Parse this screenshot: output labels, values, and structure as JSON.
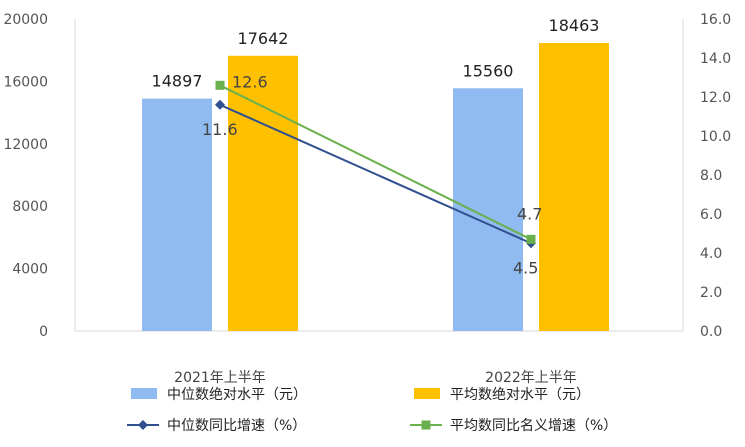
{
  "chart_data": {
    "type": "bar",
    "categories": [
      "2021年上半年",
      "2022年上半年"
    ],
    "y_left": {
      "ticks": [
        "0",
        "4000",
        "8000",
        "12000",
        "16000",
        "20000"
      ],
      "ylim": [
        0,
        20000
      ]
    },
    "y_right": {
      "ticks": [
        "0.0",
        "2.0",
        "4.0",
        "6.0",
        "8.0",
        "10.0",
        "12.0",
        "14.0",
        "16.0"
      ],
      "ylim": [
        0,
        16
      ]
    },
    "bar_series": [
      {
        "name": "中位数绝对水平（元）",
        "color": "#8FBBF0",
        "values": [
          14897,
          15560
        ],
        "labels": [
          "14897",
          "15560"
        ]
      },
      {
        "name": "平均数绝对水平（元）",
        "color": "#FFC000",
        "values": [
          17642,
          18463
        ],
        "labels": [
          "17642",
          "18463"
        ]
      }
    ],
    "line_series": [
      {
        "name": "中位数同比增速（%）",
        "color": "#2F4F8F",
        "marker": "diamond",
        "values": [
          11.6,
          4.5
        ],
        "labels": [
          "11.6",
          "4.5"
        ]
      },
      {
        "name": "平均数同比名义增速（%）",
        "color": "#6AB04C",
        "marker": "square",
        "values": [
          12.6,
          4.7
        ],
        "labels": [
          "12.6",
          "4.7"
        ]
      }
    ],
    "legend_position": "bottom",
    "grid": false
  }
}
